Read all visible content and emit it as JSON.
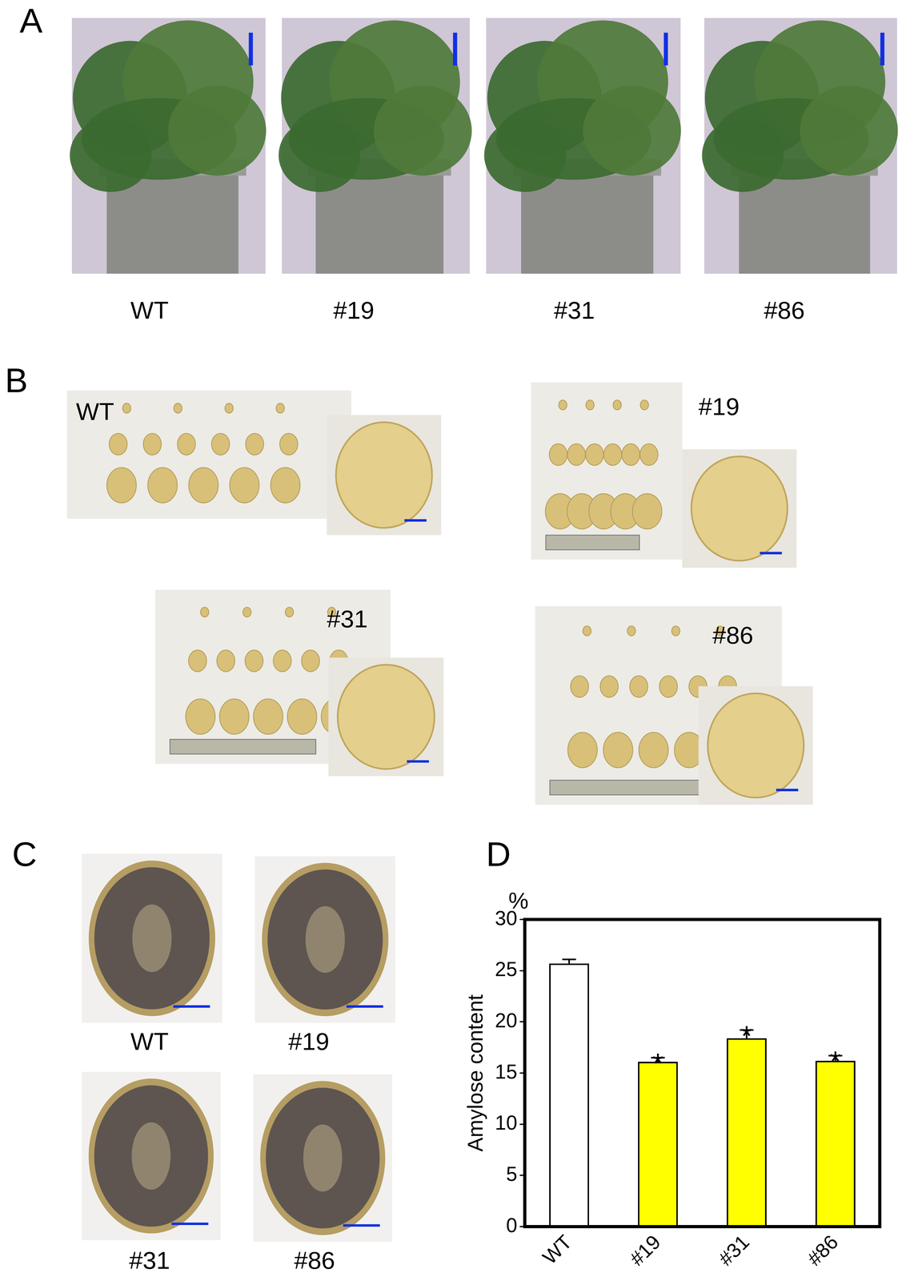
{
  "panels": [
    {
      "label": "A",
      "items": [
        "WT",
        "#19",
        "#31",
        "#86"
      ]
    },
    {
      "label": "B",
      "items": [
        "WT",
        "#19",
        "#31",
        "#86"
      ]
    },
    {
      "label": "C",
      "items": [
        "WT",
        "#19",
        "#31",
        "#86"
      ]
    },
    {
      "label": "D"
    }
  ],
  "chart_data": {
    "type": "bar",
    "categories": [
      "WT",
      "#19",
      "#31",
      "#86"
    ],
    "values": [
      25.7,
      16.1,
      18.4,
      16.2
    ],
    "errors": [
      0.4,
      0.4,
      0.8,
      0.5
    ],
    "significance": [
      null,
      "*",
      "*",
      "*"
    ],
    "colors": [
      "#ffffff",
      "#ffff00",
      "#ffff00",
      "#ffff00"
    ],
    "ylabel": "Amylose content",
    "y_unit": "%",
    "ylim": [
      0,
      30
    ],
    "yticks": [
      0,
      5,
      10,
      15,
      20,
      25,
      30
    ],
    "grid": false
  }
}
